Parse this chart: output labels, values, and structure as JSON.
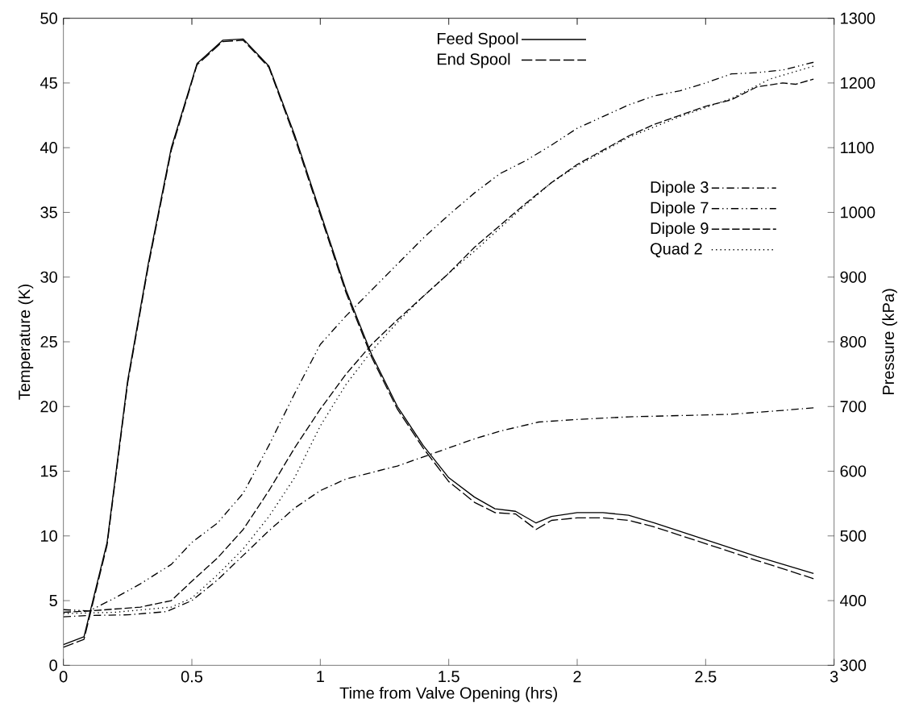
{
  "chart_data": {
    "type": "line",
    "xlabel": "Time from Valve Opening (hrs)",
    "ylabel": "Temperature (K)",
    "y2label": "Pressure (kPa)",
    "xlim": [
      0,
      3
    ],
    "xticks": [
      0,
      0.5,
      1,
      1.5,
      2,
      2.5,
      3
    ],
    "ylim": [
      0,
      50
    ],
    "yticks": [
      0,
      5,
      10,
      15,
      20,
      25,
      30,
      35,
      40,
      45,
      50
    ],
    "y2lim": [
      300,
      1300
    ],
    "y2ticks": [
      300,
      400,
      500,
      600,
      700,
      800,
      900,
      1000,
      1100,
      1200,
      1300
    ],
    "legend": "top",
    "grid": false,
    "series": [
      {
        "name": "Feed Spool",
        "color": "#000000",
        "line_style": "solid",
        "x": [
          0,
          0.08,
          0.17,
          0.25,
          0.33,
          0.42,
          0.52,
          0.62,
          0.7,
          0.8,
          0.9,
          1.0,
          1.1,
          1.2,
          1.3,
          1.4,
          1.5,
          1.6,
          1.68,
          1.76,
          1.84,
          1.9,
          2.0,
          2.1,
          2.2,
          2.3,
          2.5,
          2.7,
          2.92
        ],
        "values": [
          1.6,
          2.2,
          9.5,
          22,
          31,
          40,
          46.5,
          48.3,
          48.4,
          46.3,
          41,
          35,
          29,
          24,
          20,
          17,
          14.5,
          13,
          12.1,
          11.9,
          11,
          11.5,
          11.8,
          11.8,
          11.6,
          11,
          9.7,
          8.4,
          7.1
        ]
      },
      {
        "name": "End Spool",
        "color": "#000000",
        "line_style": "dashed",
        "x": [
          0,
          0.08,
          0.17,
          0.25,
          0.33,
          0.42,
          0.52,
          0.62,
          0.7,
          0.8,
          0.9,
          1.0,
          1.1,
          1.2,
          1.3,
          1.4,
          1.5,
          1.6,
          1.68,
          1.76,
          1.84,
          1.9,
          2.0,
          2.1,
          2.2,
          2.3,
          2.5,
          2.7,
          2.92
        ],
        "values": [
          1.4,
          2.0,
          9.3,
          21.8,
          30.8,
          39.8,
          46.4,
          48.2,
          48.3,
          46.2,
          40.8,
          34.8,
          28.8,
          23.8,
          19.8,
          16.8,
          14.2,
          12.6,
          11.8,
          11.7,
          10.5,
          11.2,
          11.4,
          11.4,
          11.2,
          10.7,
          9.4,
          8.1,
          6.7
        ]
      },
      {
        "name": "Dipole 3",
        "color": "#000000",
        "line_style": "dashdot",
        "axis": "y2",
        "x": [
          0,
          0.1,
          0.25,
          0.4,
          0.5,
          0.6,
          0.7,
          0.8,
          0.9,
          1.0,
          1.1,
          1.2,
          1.3,
          1.4,
          1.5,
          1.6,
          1.7,
          1.85,
          2.0,
          2.2,
          2.4,
          2.6,
          2.8,
          2.92
        ],
        "values": [
          375,
          377,
          378,
          383,
          400,
          432,
          470,
          508,
          543,
          570,
          588,
          598,
          608,
          622,
          636,
          650,
          662,
          676,
          680,
          684,
          686,
          688,
          694,
          698
        ]
      },
      {
        "name": "Dipole 7",
        "color": "#000000",
        "line_style": "dashdotdot",
        "axis": "y2",
        "x": [
          0,
          0.1,
          0.2,
          0.3,
          0.42,
          0.5,
          0.6,
          0.7,
          0.8,
          0.9,
          1.0,
          1.1,
          1.2,
          1.3,
          1.4,
          1.5,
          1.6,
          1.7,
          1.8,
          1.9,
          2.0,
          2.1,
          2.2,
          2.3,
          2.4,
          2.5,
          2.6,
          2.7,
          2.8,
          2.92
        ],
        "values": [
          386,
          384,
          404,
          426,
          456,
          490,
          520,
          566,
          640,
          720,
          796,
          840,
          880,
          920,
          960,
          996,
          1030,
          1060,
          1080,
          1104,
          1130,
          1148,
          1166,
          1180,
          1188,
          1200,
          1214,
          1216,
          1220,
          1232
        ]
      },
      {
        "name": "Dipole 9",
        "color": "#000000",
        "line_style": "dashed",
        "axis": "y2",
        "x": [
          0,
          0.1,
          0.3,
          0.42,
          0.5,
          0.6,
          0.7,
          0.8,
          0.9,
          1.0,
          1.1,
          1.2,
          1.3,
          1.4,
          1.5,
          1.6,
          1.7,
          1.8,
          1.9,
          2.0,
          2.1,
          2.2,
          2.3,
          2.4,
          2.5,
          2.6,
          2.7,
          2.8,
          2.85,
          2.92
        ],
        "values": [
          382,
          384,
          390,
          400,
          430,
          466,
          510,
          570,
          636,
          696,
          750,
          796,
          834,
          870,
          906,
          946,
          980,
          1014,
          1046,
          1074,
          1096,
          1118,
          1136,
          1150,
          1164,
          1174,
          1194,
          1200,
          1198,
          1206
        ]
      },
      {
        "name": "Quad 2",
        "color": "#000000",
        "line_style": "dotted",
        "axis": "y2",
        "x": [
          0,
          0.2,
          0.42,
          0.5,
          0.6,
          0.7,
          0.8,
          0.9,
          1.0,
          1.1,
          1.2,
          1.3,
          1.4,
          1.5,
          1.6,
          1.7,
          1.8,
          1.9,
          2.0,
          2.2,
          2.4,
          2.6,
          2.75,
          2.92
        ],
        "values": [
          380,
          382,
          390,
          404,
          440,
          480,
          530,
          590,
          670,
          734,
          786,
          830,
          870,
          906,
          940,
          976,
          1012,
          1046,
          1072,
          1116,
          1148,
          1176,
          1206,
          1226
        ]
      }
    ]
  }
}
